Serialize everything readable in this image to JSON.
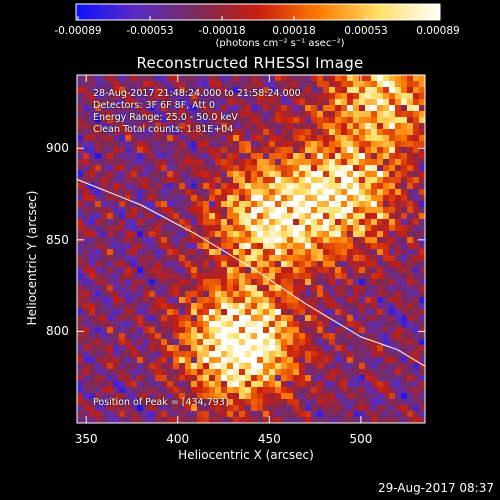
{
  "colorbar": {
    "tick_labels": [
      "-0.00089",
      "-0.00053",
      "-0.00018",
      "0.00018",
      "0.00053",
      "0.00089"
    ],
    "unit": "(photons cm⁻² s⁻¹ asec⁻²)",
    "range": [
      -0.00089,
      0.00089
    ],
    "colors": [
      "#1010ff",
      "#5a2cc0",
      "#7a2a5a",
      "#c81e10",
      "#ff7a00",
      "#ffe066",
      "#ffffff"
    ]
  },
  "chart_data": {
    "type": "heatmap",
    "title": "Reconstructed RHESSI Image",
    "xlabel": "Heliocentric X (arcsec)",
    "ylabel": "Heliocentric Y (arcsec)",
    "xlim": [
      345,
      535
    ],
    "ylim": [
      750,
      940
    ],
    "x_ticks": [
      350,
      400,
      450,
      500
    ],
    "y_ticks": [
      800,
      850,
      900
    ],
    "info_lines": [
      "28-Aug-2017 21:48:24.000 to 21:58:24.000",
      "Detectors: 3F 6F 8F, Att 0",
      "Energy Range: 25.0 - 50.0 keV",
      "Clean     Total counts: 1.81E+04"
    ],
    "peak_label": "Position of Peak = [434,793]",
    "peak_position": [
      434,
      793
    ],
    "limb": [
      [
        345,
        883
      ],
      [
        380,
        869
      ],
      [
        410,
        853
      ],
      [
        440,
        835
      ],
      [
        470,
        815
      ],
      [
        500,
        797
      ],
      [
        520,
        790
      ],
      [
        535,
        781
      ]
    ],
    "bright_sources": [
      {
        "x": 434,
        "y": 793,
        "strength": 1.0
      },
      {
        "x": 450,
        "y": 862,
        "strength": 0.75
      },
      {
        "x": 490,
        "y": 875,
        "strength": 0.7
      },
      {
        "x": 512,
        "y": 928,
        "strength": 0.65
      }
    ]
  },
  "footer": {
    "timestamp": "29-Aug-2017 08:37"
  }
}
